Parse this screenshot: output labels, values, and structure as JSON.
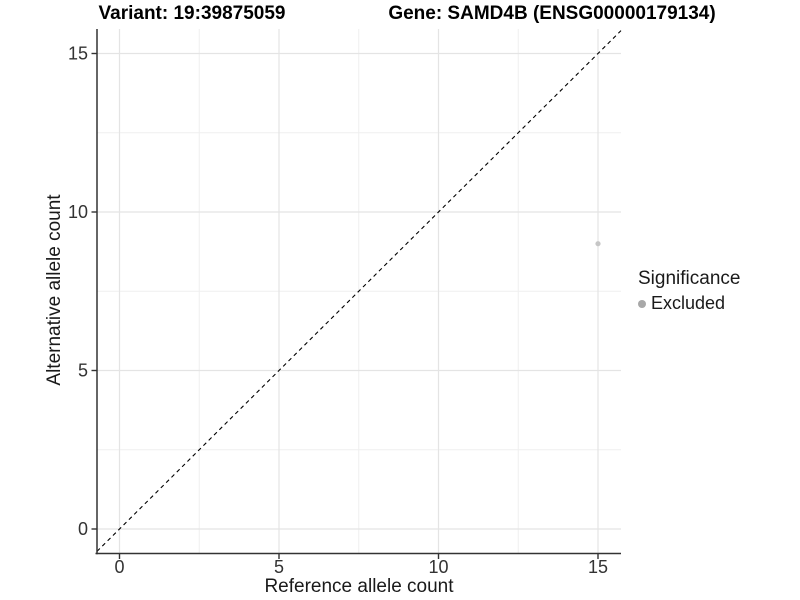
{
  "chart_data": {
    "type": "scatter",
    "titles": {
      "variant": "Variant: 19:39875059",
      "gene": "Gene: SAMD4B (ENSG00000179134)"
    },
    "xlabel": "Reference allele count",
    "ylabel": "Alternative allele count",
    "xlim": [
      -0.75,
      15.75
    ],
    "ylim": [
      -0.75,
      15.75
    ],
    "xticks": [
      0,
      5,
      10,
      15
    ],
    "yticks": [
      0,
      5,
      10,
      15
    ],
    "xtick_labels": [
      "0",
      "5",
      "10",
      "15"
    ],
    "ytick_labels": [
      "0",
      "5",
      "10",
      "15"
    ],
    "minor_gridlines_x": [
      2.5,
      7.5,
      12.5
    ],
    "minor_gridlines_y": [
      2.5,
      7.5,
      12.5
    ],
    "grid": "major+minor",
    "series": [
      {
        "name": "Excluded",
        "color": "#c6c6c6",
        "points": [
          {
            "x": 15,
            "y": 9
          }
        ]
      }
    ],
    "identity_line": {
      "style": "dashed",
      "slope": 1,
      "intercept": 0,
      "color": "#000000"
    },
    "legend": {
      "title": "Significance",
      "position": "right",
      "entries": [
        {
          "label": "Excluded",
          "color": "#a8a8a8"
        }
      ]
    },
    "colors": {
      "axis": "#333333",
      "tick_text": "#333333",
      "grid_major": "#e4e4e4",
      "grid_minor": "#efefef",
      "background": "#ffffff"
    }
  }
}
